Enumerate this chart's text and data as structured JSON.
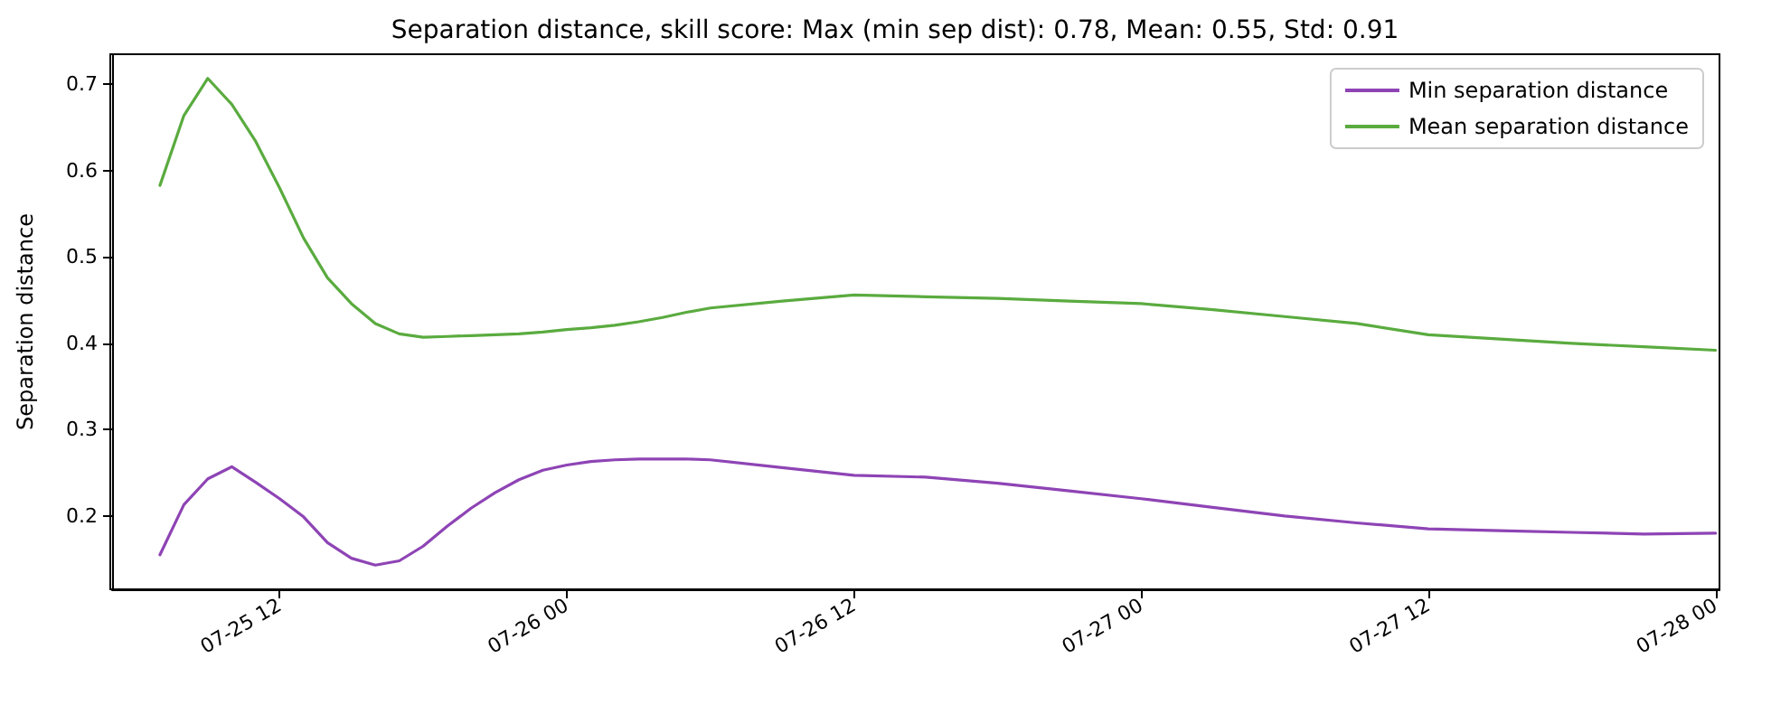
{
  "chart_data": {
    "type": "line",
    "title": "Separation distance, skill score: Max (min sep dist): 0.78, Mean: 0.55, Std: 0.91",
    "ylabel": "Separation distance",
    "x": [
      "--07-25T07:00",
      "--07-25T08:00",
      "--07-25T09:00",
      "--07-25T10:00",
      "--07-25T11:00",
      "--07-25T12:00",
      "--07-25T13:00",
      "--07-25T14:00",
      "--07-25T15:00",
      "--07-25T16:00",
      "--07-25T17:00",
      "--07-25T18:00",
      "--07-25T19:00",
      "--07-25T20:00",
      "--07-25T21:00",
      "--07-25T22:00",
      "--07-25T23:00",
      "--07-26T00:00",
      "--07-26T01:00",
      "--07-26T02:00",
      "--07-26T03:00",
      "--07-26T04:00",
      "--07-26T05:00",
      "--07-26T06:00",
      "--07-26T09:00",
      "--07-26T12:00",
      "--07-26T15:00",
      "--07-26T18:00",
      "--07-26T21:00",
      "--07-27T00:00",
      "--07-27T03:00",
      "--07-27T06:00",
      "--07-27T09:00",
      "--07-27T12:00",
      "--07-27T15:00",
      "--07-27T18:00",
      "--07-27T21:00",
      "--07-28T00:00"
    ],
    "series": [
      {
        "name": "Min separation distance",
        "color": "#8e44b5",
        "values": [
          0.155,
          0.213,
          0.243,
          0.257,
          0.239,
          0.22,
          0.199,
          0.169,
          0.151,
          0.143,
          0.148,
          0.165,
          0.188,
          0.209,
          0.227,
          0.242,
          0.253,
          0.259,
          0.263,
          0.265,
          0.266,
          0.266,
          0.266,
          0.265,
          0.256,
          0.247,
          0.245,
          0.238,
          0.229,
          0.22,
          0.21,
          0.2,
          0.192,
          0.185,
          0.183,
          0.181,
          0.179,
          0.18
        ]
      },
      {
        "name": "Mean separation distance",
        "color": "#5aab3f",
        "values": [
          0.583,
          0.664,
          0.707,
          0.677,
          0.634,
          0.58,
          0.522,
          0.476,
          0.446,
          0.423,
          0.411,
          0.407,
          0.408,
          0.409,
          0.41,
          0.411,
          0.413,
          0.416,
          0.418,
          0.421,
          0.425,
          0.43,
          0.436,
          0.441,
          0.449,
          0.456,
          0.454,
          0.452,
          0.449,
          0.446,
          0.439,
          0.431,
          0.423,
          0.41,
          0.405,
          0.4,
          0.396,
          0.392
        ]
      }
    ],
    "xlim": [
      "--07-25T05:00",
      "--07-28T00:10"
    ],
    "xticks": [
      {
        "value": "--07-25T12:00",
        "label": "07-25 12"
      },
      {
        "value": "--07-26T00:00",
        "label": "07-26 00"
      },
      {
        "value": "--07-26T12:00",
        "label": "07-26 12"
      },
      {
        "value": "--07-27T00:00",
        "label": "07-27 00"
      },
      {
        "value": "--07-27T12:00",
        "label": "07-27 12"
      },
      {
        "value": "--07-28T00:00",
        "label": "07-28 00"
      }
    ],
    "ylim": [
      0.115,
      0.735
    ],
    "yticks": [
      0.2,
      0.3,
      0.4,
      0.5,
      0.6,
      0.7
    ],
    "grid": false,
    "legend": "top right",
    "marker": "none",
    "line_style": "solid"
  }
}
